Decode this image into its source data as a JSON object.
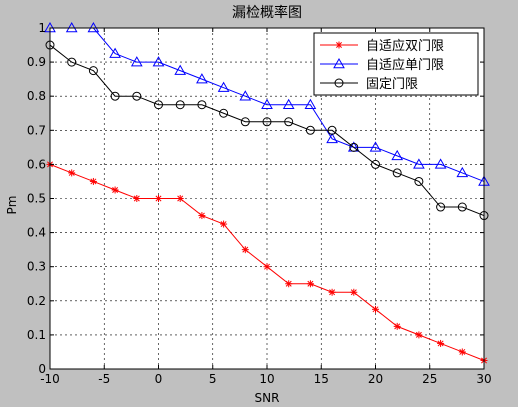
{
  "chart_data": {
    "type": "line",
    "title": "漏检概率图",
    "xlabel": "SNR",
    "ylabel": "Pm",
    "xlim": [
      -10,
      30
    ],
    "ylim": [
      0,
      1
    ],
    "x_ticks": [
      -10,
      -5,
      0,
      5,
      10,
      15,
      20,
      25,
      30
    ],
    "y_ticks": [
      0,
      0.1,
      0.2,
      0.3,
      0.4,
      0.5,
      0.6,
      0.7,
      0.8,
      0.9,
      1
    ],
    "x_tick_labels": [
      "-10",
      "-5",
      "0",
      "5",
      "10",
      "15",
      "20",
      "25",
      "30"
    ],
    "y_tick_labels": [
      "0",
      "0.1",
      "0.2",
      "0.3",
      "0.4",
      "0.5",
      "0.6",
      "0.7",
      "0.8",
      "0.9",
      "1"
    ],
    "grid": true,
    "legend_position": "top-right",
    "x": [
      -10,
      -8,
      -6,
      -4,
      -2,
      0,
      2,
      4,
      6,
      8,
      10,
      12,
      14,
      16,
      18,
      20,
      22,
      24,
      26,
      28,
      30
    ],
    "series": [
      {
        "name": "自适应双门限",
        "color": "#ff0000",
        "marker": "asterisk",
        "values": [
          0.6,
          0.575,
          0.55,
          0.525,
          0.5,
          0.5,
          0.5,
          0.45,
          0.425,
          0.35,
          0.3,
          0.25,
          0.25,
          0.225,
          0.225,
          0.175,
          0.125,
          0.1,
          0.075,
          0.05,
          0.025
        ]
      },
      {
        "name": "自适应单门限",
        "color": "#0000ff",
        "marker": "triangle",
        "values": [
          1.0,
          1.0,
          1.0,
          0.925,
          0.9,
          0.9,
          0.875,
          0.85,
          0.825,
          0.8,
          0.775,
          0.775,
          0.775,
          0.675,
          0.65,
          0.65,
          0.625,
          0.6,
          0.6,
          0.575,
          0.55
        ]
      },
      {
        "name": "固定门限",
        "color": "#000000",
        "marker": "circle",
        "values": [
          0.95,
          0.9,
          0.875,
          0.8,
          0.8,
          0.775,
          0.775,
          0.775,
          0.75,
          0.725,
          0.725,
          0.725,
          0.7,
          0.7,
          0.65,
          0.6,
          0.575,
          0.55,
          0.475,
          0.475,
          0.45
        ]
      }
    ]
  }
}
